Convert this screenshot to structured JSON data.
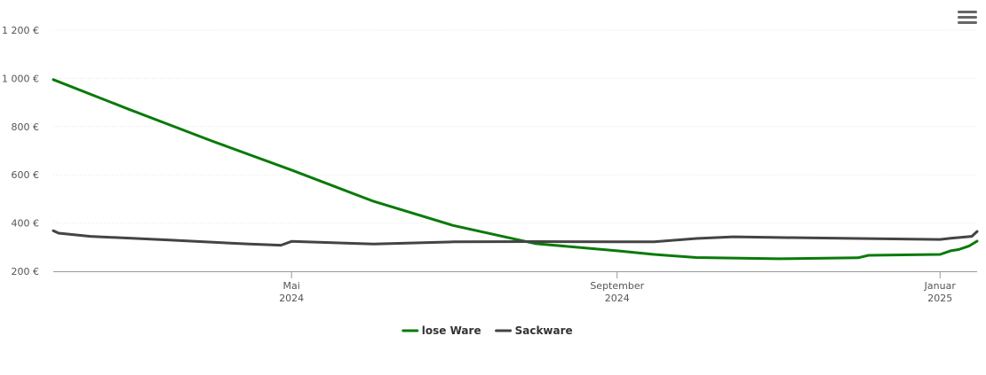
{
  "menu": {
    "icon": "hamburger-menu-icon"
  },
  "chart_data": {
    "type": "line",
    "title": "",
    "xlabel": "",
    "ylabel": "",
    "ylim": [
      200,
      1200
    ],
    "y_ticks": [
      200,
      400,
      600,
      800,
      1000,
      1200
    ],
    "y_tick_labels": [
      "200 €",
      "400 €",
      "600 €",
      "800 €",
      "1 000 €",
      "1 200 €"
    ],
    "x_range": [
      "2024-02-01",
      "2025-01-15"
    ],
    "x_ticks": [
      {
        "date": "2024-05-01",
        "label1": "Mai",
        "label2": "2024"
      },
      {
        "date": "2024-09-01",
        "label1": "September",
        "label2": "2024"
      },
      {
        "date": "2025-01-01",
        "label1": "Januar",
        "label2": "2025"
      }
    ],
    "grid": true,
    "legend_position": "bottom-center",
    "series": [
      {
        "name": "lose Ware",
        "color": "#0a7a0a",
        "points": [
          [
            "2024-02-01",
            995
          ],
          [
            "2024-03-01",
            870
          ],
          [
            "2024-04-01",
            740
          ],
          [
            "2024-05-01",
            620
          ],
          [
            "2024-06-01",
            490
          ],
          [
            "2024-07-01",
            390
          ],
          [
            "2024-08-01",
            315
          ],
          [
            "2024-09-01",
            285
          ],
          [
            "2024-09-15",
            270
          ],
          [
            "2024-10-01",
            257
          ],
          [
            "2024-11-01",
            252
          ],
          [
            "2024-12-01",
            256
          ],
          [
            "2024-12-05",
            266
          ],
          [
            "2025-01-01",
            270
          ],
          [
            "2025-01-05",
            285
          ],
          [
            "2025-01-08",
            290
          ],
          [
            "2025-01-12",
            305
          ],
          [
            "2025-01-15",
            325
          ]
        ]
      },
      {
        "name": "Sackware",
        "color": "#444444",
        "points": [
          [
            "2024-02-01",
            368
          ],
          [
            "2024-02-03",
            358
          ],
          [
            "2024-02-15",
            345
          ],
          [
            "2024-03-15",
            330
          ],
          [
            "2024-04-15",
            313
          ],
          [
            "2024-04-27",
            308
          ],
          [
            "2024-05-01",
            324
          ],
          [
            "2024-06-01",
            313
          ],
          [
            "2024-07-01",
            322
          ],
          [
            "2024-08-01",
            323
          ],
          [
            "2024-09-01",
            322
          ],
          [
            "2024-09-15",
            322
          ],
          [
            "2024-10-01",
            336
          ],
          [
            "2024-10-15",
            343
          ],
          [
            "2024-11-01",
            340
          ],
          [
            "2024-12-01",
            336
          ],
          [
            "2025-01-01",
            332
          ],
          [
            "2025-01-05",
            337
          ],
          [
            "2025-01-13",
            345
          ],
          [
            "2025-01-15",
            365
          ]
        ]
      }
    ]
  }
}
